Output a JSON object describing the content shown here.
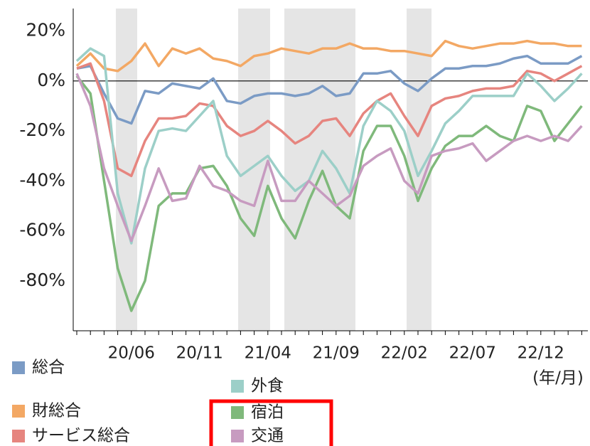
{
  "chart_data": {
    "type": "line",
    "xlabel": "(年/月)",
    "categories": [
      null,
      null,
      null,
      null,
      "20/06",
      null,
      null,
      null,
      null,
      "20/11",
      null,
      null,
      null,
      null,
      "21/04",
      null,
      null,
      null,
      null,
      "21/09",
      null,
      null,
      null,
      null,
      "22/02",
      null,
      null,
      null,
      null,
      "22/07",
      null,
      null,
      null,
      null,
      "22/12",
      null,
      null,
      null
    ],
    "ylim": [
      -100,
      29
    ],
    "yticks": [
      {
        "value": 20,
        "label": "20%"
      },
      {
        "value": 0,
        "label": "0%"
      },
      {
        "value": -20,
        "label": "-20%"
      },
      {
        "value": -40,
        "label": "-40%"
      },
      {
        "value": -60,
        "label": "-60%"
      },
      {
        "value": -80,
        "label": "-80%"
      }
    ],
    "series": [
      {
        "name": "総合",
        "color": "#7b9bc5",
        "values": [
          5,
          6,
          -5,
          -15,
          -17,
          -4,
          -5,
          -1,
          -2,
          -3,
          1,
          -8,
          -9,
          -6,
          -5,
          -5,
          -6,
          -5,
          -2,
          -6,
          -5,
          3,
          3,
          4,
          -1,
          -4,
          1,
          5,
          5,
          6,
          6,
          7,
          9,
          10,
          7,
          7,
          7,
          10
        ]
      },
      {
        "name": "財総合",
        "color": "#f3a864",
        "values": [
          6,
          11,
          5,
          4,
          8,
          15,
          6,
          13,
          11,
          13,
          9,
          8,
          6,
          10,
          11,
          13,
          12,
          11,
          13,
          13,
          15,
          13,
          13,
          12,
          12,
          11,
          10,
          16,
          14,
          13,
          14,
          15,
          15,
          16,
          15,
          15,
          14,
          14
        ]
      },
      {
        "name": "サービス総合",
        "color": "#e6857f",
        "values": [
          5,
          7,
          -8,
          -35,
          -38,
          -24,
          -15,
          -15,
          -14,
          -9,
          -10,
          -18,
          -22,
          -20,
          -16,
          -20,
          -25,
          -22,
          -16,
          -15,
          -22,
          -13,
          -8,
          -5,
          -14,
          -22,
          -10,
          -7,
          -6,
          -4,
          -3,
          -3,
          -2,
          4,
          3,
          0,
          3,
          6
        ]
      },
      {
        "name": "外食",
        "color": "#9ccfc8",
        "values": [
          8,
          13,
          10,
          -45,
          -65,
          -35,
          -20,
          -19,
          -20,
          -14,
          -8,
          -30,
          -38,
          -34,
          -30,
          -38,
          -44,
          -40,
          -28,
          -35,
          -45,
          -18,
          -8,
          -12,
          -20,
          -38,
          -28,
          -17,
          -12,
          -6,
          -6,
          -6,
          -6,
          3,
          -2,
          -8,
          -3,
          3
        ]
      },
      {
        "name": "宿泊",
        "color": "#7fb97b",
        "values": [
          2,
          -5,
          -40,
          -75,
          -92,
          -80,
          -50,
          -45,
          -45,
          -35,
          -34,
          -42,
          -55,
          -62,
          -42,
          -55,
          -63,
          -48,
          -36,
          -50,
          -55,
          -28,
          -18,
          -18,
          -30,
          -48,
          -35,
          -26,
          -22,
          -22,
          -18,
          -22,
          -24,
          -10,
          -12,
          -24,
          -17,
          -10
        ]
      },
      {
        "name": "交通",
        "color": "#c79bc0",
        "values": [
          3,
          -10,
          -35,
          -50,
          -64,
          -50,
          -35,
          -48,
          -47,
          -34,
          -42,
          -44,
          -48,
          -50,
          -32,
          -48,
          -48,
          -40,
          -45,
          -50,
          -46,
          -34,
          -30,
          -27,
          -40,
          -45,
          -30,
          -28,
          -27,
          -25,
          -32,
          -28,
          -24,
          -22,
          -24,
          -22,
          -24,
          -18
        ]
      }
    ]
  }
}
